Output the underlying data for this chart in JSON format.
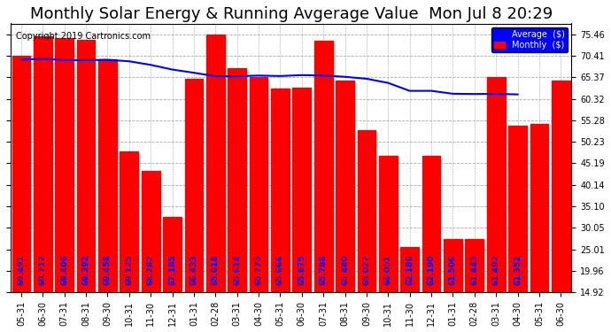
{
  "title": "Monthly Solar Energy & Running Avgerage Value  Mon Jul 8 20:29",
  "copyright": "Copyright 2019 Cartronics.com",
  "categories": [
    "05-31",
    "06-30",
    "07-31",
    "08-31",
    "09-30",
    "10-31",
    "11-30",
    "12-31",
    "01-31",
    "02-28",
    "03-31",
    "04-30",
    "05-31",
    "06-30",
    "07-31",
    "08-31",
    "09-30",
    "10-31",
    "11-30",
    "12-31",
    "01-31",
    "02-28",
    "03-31",
    "04-30",
    "05-31",
    "06-30"
  ],
  "bar_values": [
    70.5,
    75.0,
    74.5,
    74.2,
    69.5,
    48.0,
    43.5,
    32.5,
    65.0,
    75.5,
    67.5,
    65.5,
    62.8,
    63.0,
    74.0,
    64.5,
    53.0,
    47.0,
    25.5,
    47.0,
    27.5,
    27.5,
    65.5,
    54.0,
    54.5,
    64.5
  ],
  "avg_values": [
    69.491,
    69.712,
    69.406,
    69.392,
    69.458,
    69.125,
    68.282,
    67.185,
    66.433,
    65.618,
    65.614,
    65.775,
    65.666,
    65.875,
    65.788,
    65.48,
    65.027,
    64.051,
    62.186,
    62.19,
    61.506,
    61.445,
    61.492,
    61.352
  ],
  "bar_color": "#ff0000",
  "avg_line_color": "#0000ff",
  "bg_color": "#ffffff",
  "grid_color": "#aaaaaa",
  "yticks": [
    14.92,
    19.96,
    25.01,
    30.05,
    35.1,
    40.14,
    45.19,
    50.23,
    55.28,
    60.32,
    65.37,
    70.41,
    75.46
  ],
  "ylim_min": 14.92,
  "ylim_max": 78.0,
  "title_fontsize": 13,
  "label_fontsize": 6.5,
  "tick_fontsize": 7
}
